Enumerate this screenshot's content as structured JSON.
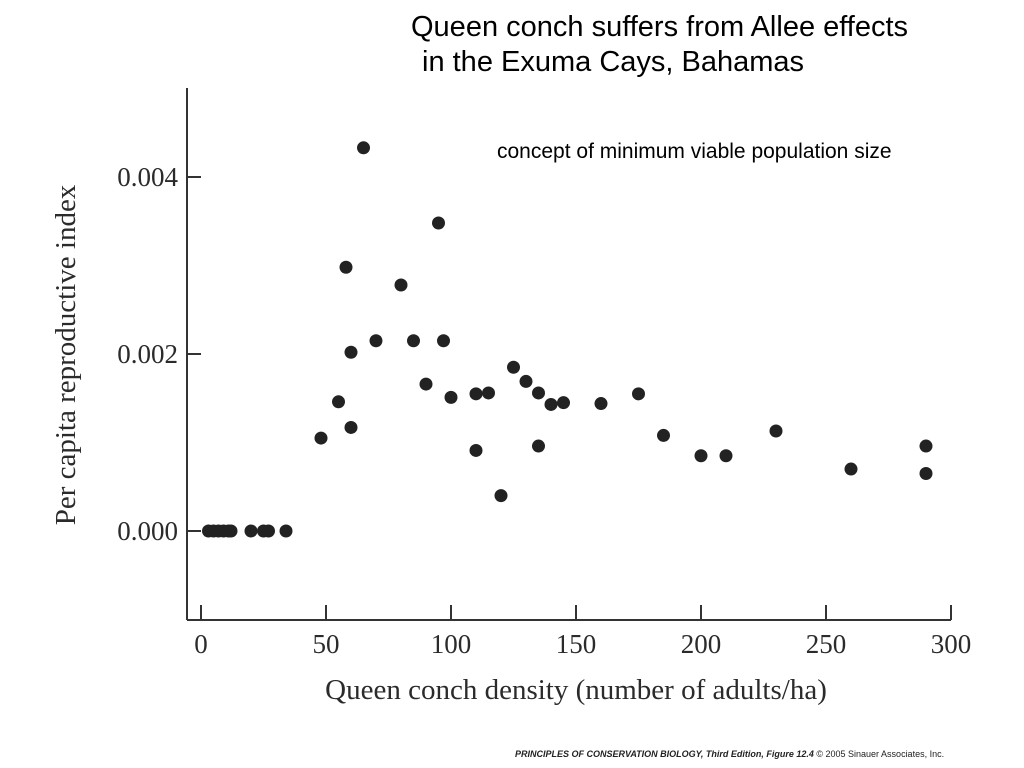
{
  "title_line1": "Queen conch suffers from Allee effects",
  "title_line2": "in the Exuma Cays, Bahamas",
  "annotation": "concept of minimum viable population size",
  "footer": {
    "book": "PRINCIPLES OF CONSERVATION BIOLOGY, Third Edition, Figure 12.4",
    "copyright": " © 2005 Sinauer Associates, Inc."
  },
  "chart_data": {
    "type": "scatter",
    "xlabel": "Queen conch density (number of adults/ha)",
    "ylabel": "Per capita reproductive index",
    "xlim": [
      0,
      300
    ],
    "ylim": [
      -0.001,
      0.005
    ],
    "x_ticks": [
      {
        "value": 0,
        "label": "0"
      },
      {
        "value": 50,
        "label": "50"
      },
      {
        "value": 100,
        "label": "100"
      },
      {
        "value": 150,
        "label": "150"
      },
      {
        "value": 200,
        "label": "200"
      },
      {
        "value": 250,
        "label": "250"
      },
      {
        "value": 300,
        "label": "300"
      }
    ],
    "y_ticks": [
      {
        "value": 0,
        "label": "0.000"
      },
      {
        "value": 0.002,
        "label": "0.002"
      },
      {
        "value": 0.004,
        "label": "0.004"
      }
    ],
    "marker_color": "#222222",
    "axis_color": "#333333",
    "points": [
      {
        "x": 3,
        "y": 0
      },
      {
        "x": 5,
        "y": 0
      },
      {
        "x": 7,
        "y": 0
      },
      {
        "x": 9,
        "y": 0
      },
      {
        "x": 11,
        "y": 0
      },
      {
        "x": 12,
        "y": 0
      },
      {
        "x": 20,
        "y": 0
      },
      {
        "x": 25,
        "y": 0
      },
      {
        "x": 27,
        "y": 0
      },
      {
        "x": 34,
        "y": 0
      },
      {
        "x": 48,
        "y": 0.00105
      },
      {
        "x": 55,
        "y": 0.00146
      },
      {
        "x": 58,
        "y": 0.00298
      },
      {
        "x": 60,
        "y": 0.00202
      },
      {
        "x": 60,
        "y": 0.00117
      },
      {
        "x": 65,
        "y": 0.00433
      },
      {
        "x": 70,
        "y": 0.00215
      },
      {
        "x": 80,
        "y": 0.00278
      },
      {
        "x": 85,
        "y": 0.00215
      },
      {
        "x": 90,
        "y": 0.00166
      },
      {
        "x": 95,
        "y": 0.00348
      },
      {
        "x": 97,
        "y": 0.00215
      },
      {
        "x": 100,
        "y": 0.00151
      },
      {
        "x": 110,
        "y": 0.00091
      },
      {
        "x": 110,
        "y": 0.00155
      },
      {
        "x": 115,
        "y": 0.00156
      },
      {
        "x": 120,
        "y": 0.0004
      },
      {
        "x": 125,
        "y": 0.00185
      },
      {
        "x": 130,
        "y": 0.00169
      },
      {
        "x": 135,
        "y": 0.00156
      },
      {
        "x": 135,
        "y": 0.00096
      },
      {
        "x": 140,
        "y": 0.00143
      },
      {
        "x": 145,
        "y": 0.00145
      },
      {
        "x": 160,
        "y": 0.00144
      },
      {
        "x": 175,
        "y": 0.00155
      },
      {
        "x": 185,
        "y": 0.00108
      },
      {
        "x": 200,
        "y": 0.00085
      },
      {
        "x": 210,
        "y": 0.00085
      },
      {
        "x": 230,
        "y": 0.00113
      },
      {
        "x": 260,
        "y": 0.0007
      },
      {
        "x": 290,
        "y": 0.00096
      },
      {
        "x": 290,
        "y": 0.00065
      }
    ]
  }
}
